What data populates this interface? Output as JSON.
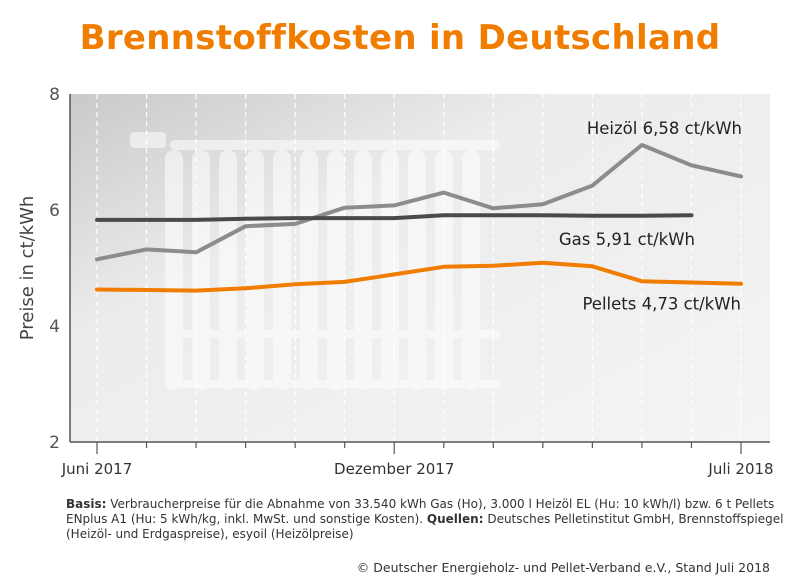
{
  "chart_data": {
    "type": "line",
    "title": "Brennstoffkosten in Deutschland",
    "ylabel": "Preise in ct/kWh",
    "ylim": [
      2,
      8
    ],
    "yticks": [
      "2",
      "4",
      "6",
      "8"
    ],
    "x": [
      "2017-06",
      "2017-07",
      "2017-08",
      "2017-09",
      "2017-10",
      "2017-11",
      "2017-12",
      "2018-01",
      "2018-02",
      "2018-03",
      "2018-04",
      "2018-05",
      "2018-06",
      "2018-07"
    ],
    "xtick_labels": [
      {
        "index": 0,
        "label": "Juni 2017"
      },
      {
        "index": 6,
        "label": "Dezember 2017"
      },
      {
        "index": 13,
        "label": "Juli 2018"
      }
    ],
    "series": [
      {
        "name": "Heizöl",
        "label": "Heizöl 6,58 ct/kWh",
        "color": "#8c8c8c",
        "values": [
          5.15,
          5.32,
          5.27,
          5.72,
          5.76,
          6.04,
          6.08,
          6.3,
          6.03,
          6.1,
          6.42,
          7.12,
          6.77,
          6.58
        ]
      },
      {
        "name": "Gas",
        "label": "Gas  5,91 ct/kWh",
        "color": "#4a4a4a",
        "values": [
          5.83,
          5.83,
          5.83,
          5.85,
          5.86,
          5.86,
          5.86,
          5.91,
          5.91,
          5.91,
          5.9,
          5.9,
          5.91,
          null
        ]
      },
      {
        "name": "Pellets",
        "label": "Pellets  4,73 ct/kWh",
        "color": "#f07d00",
        "values": [
          4.63,
          4.62,
          4.61,
          4.65,
          4.72,
          4.76,
          4.89,
          5.02,
          5.04,
          5.09,
          5.03,
          4.77,
          4.75,
          4.73
        ]
      }
    ],
    "grid": "vertical dashed",
    "legend": "inline labels at right"
  },
  "footnote": {
    "basis_label": "Basis:",
    "basis_text": " Verbraucherpreise für die Abnahme von 33.540 kWh Gas (Ho), 3.000 l Heizöl EL (Hu: 10 kWh/l) bzw. 6 t Pellets ENplus A1 (Hu: 5 kWh/kg, inkl. MwSt. und sonstige Kosten).",
    "sources_label": "Quellen:",
    "sources_text": " Deutsches Pelletinstitut GmbH, Brennstoffspiegel (Heizöl- und Erdgaspreise), esyoil (Heizölpreise)"
  },
  "copyright": "© Deutscher Energieholz- und Pellet-Verband e.V., Stand Juli 2018",
  "colors": {
    "accent": "#f07d00",
    "axis": "#555555"
  }
}
